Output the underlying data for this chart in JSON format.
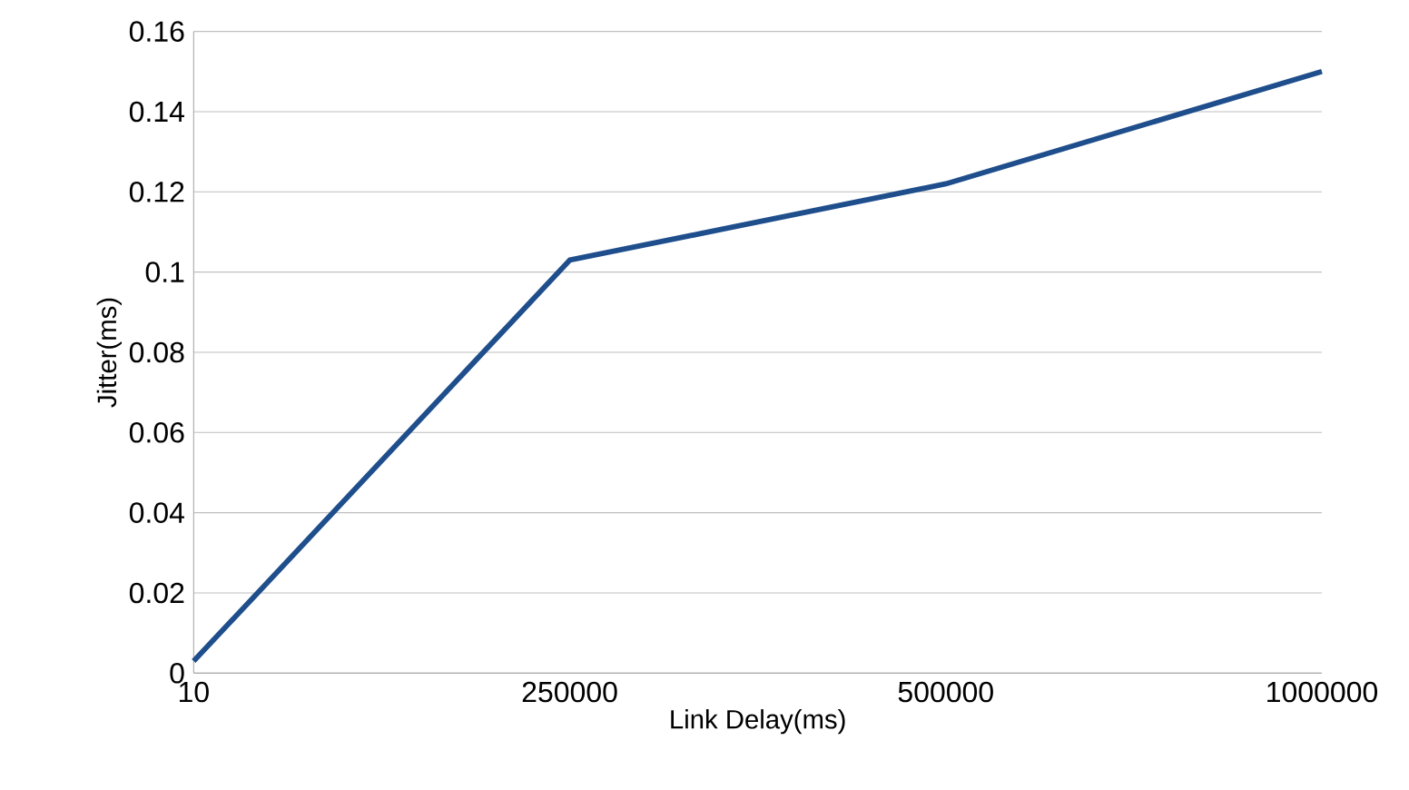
{
  "chart_data": {
    "type": "line",
    "xlabel": "Link Delay(ms)",
    "ylabel": "Jitter(ms)",
    "categories": [
      "10",
      "250000",
      "500000",
      "1000000"
    ],
    "series": [
      {
        "color": "#1f4e8c",
        "values": [
          0.003,
          0.103,
          0.122,
          0.15
        ]
      }
    ],
    "ylim": [
      0,
      0.16
    ],
    "yticks": [
      0,
      0.02,
      0.04,
      0.06,
      0.08,
      0.1,
      0.12,
      0.14,
      0.16
    ],
    "grid": "y",
    "marker": "none",
    "line_style": "solid"
  }
}
